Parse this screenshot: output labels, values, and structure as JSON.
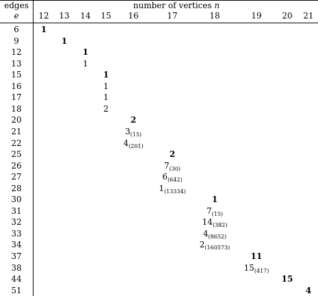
{
  "header": {
    "edges_label": "edges",
    "e_symbol": "e",
    "vertices_label": "number of vertices",
    "n_symbol": "n"
  },
  "columns": [
    "12",
    "13",
    "14",
    "15",
    "16",
    "17",
    "18",
    "19",
    "20",
    "21"
  ],
  "rows": [
    {
      "e": "6",
      "col": 0,
      "main": "1",
      "sub": "",
      "bold": true
    },
    {
      "e": "9",
      "col": 1,
      "main": "1",
      "sub": "",
      "bold": true
    },
    {
      "e": "12",
      "col": 2,
      "main": "1",
      "sub": "",
      "bold": true
    },
    {
      "e": "13",
      "col": 2,
      "main": "1",
      "sub": "",
      "bold": false
    },
    {
      "e": "15",
      "col": 3,
      "main": "1",
      "sub": "",
      "bold": true
    },
    {
      "e": "16",
      "col": 3,
      "main": "1",
      "sub": "",
      "bold": false
    },
    {
      "e": "17",
      "col": 3,
      "main": "1",
      "sub": "",
      "bold": false
    },
    {
      "e": "18",
      "col": 3,
      "main": "2",
      "sub": "",
      "bold": false
    },
    {
      "e": "20",
      "col": 4,
      "main": "2",
      "sub": "",
      "bold": true
    },
    {
      "e": "21",
      "col": 4,
      "main": "3",
      "sub": "(15)",
      "bold": false
    },
    {
      "e": "22",
      "col": 4,
      "main": "4",
      "sub": "(201)",
      "bold": false
    },
    {
      "e": "25",
      "col": 5,
      "main": "2",
      "sub": "",
      "bold": true
    },
    {
      "e": "26",
      "col": 5,
      "main": "7",
      "sub": "(30)",
      "bold": false
    },
    {
      "e": "27",
      "col": 5,
      "main": "6",
      "sub": "(642)",
      "bold": false
    },
    {
      "e": "28",
      "col": 5,
      "main": "1",
      "sub": "(13334)",
      "bold": false
    },
    {
      "e": "30",
      "col": 6,
      "main": "1",
      "sub": "",
      "bold": true
    },
    {
      "e": "31",
      "col": 6,
      "main": "7",
      "sub": "(15)",
      "bold": false
    },
    {
      "e": "32",
      "col": 6,
      "main": "14",
      "sub": "(382)",
      "bold": false
    },
    {
      "e": "33",
      "col": 6,
      "main": "4",
      "sub": "(8652)",
      "bold": false
    },
    {
      "e": "34",
      "col": 6,
      "main": "2",
      "sub": "(160573)",
      "bold": false
    },
    {
      "e": "37",
      "col": 7,
      "main": "11",
      "sub": "",
      "bold": true
    },
    {
      "e": "38",
      "col": 7,
      "main": "15",
      "sub": "(417)",
      "bold": false
    },
    {
      "e": "44",
      "col": 8,
      "main": "15",
      "sub": "",
      "bold": true
    },
    {
      "e": "51",
      "col": 9,
      "main": "4",
      "sub": "",
      "bold": true
    }
  ]
}
